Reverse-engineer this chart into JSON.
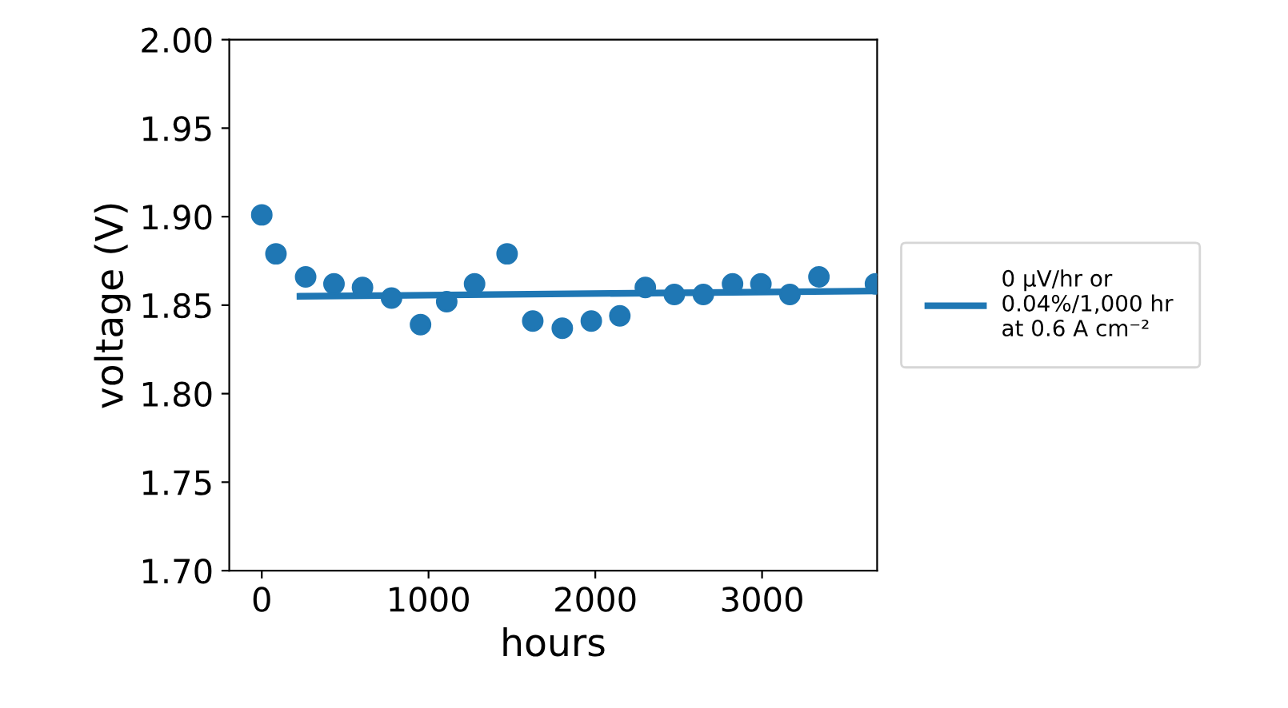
{
  "chart_data": {
    "type": "scatter",
    "xlabel": "hours",
    "ylabel": "voltage (V)",
    "xlim": [
      -195,
      3690
    ],
    "xticks": [
      0,
      1000,
      2000,
      3000
    ],
    "ylim": [
      1.7,
      2.0
    ],
    "yticks": [
      {
        "value": 1.7,
        "label": "1.70"
      },
      {
        "value": 1.75,
        "label": "1.75"
      },
      {
        "value": 1.8,
        "label": "1.80"
      },
      {
        "value": 1.85,
        "label": "1.85"
      },
      {
        "value": 1.9,
        "label": "1.90"
      },
      {
        "value": 1.95,
        "label": "1.95"
      },
      {
        "value": 2.0,
        "label": "2.00"
      }
    ],
    "grid": false,
    "legend": "right",
    "series": [
      {
        "color": "#1f77b4",
        "marker": "circle",
        "x": [
          0,
          85,
          263,
          433,
          604,
          778,
          952,
          1109,
          1276,
          1471,
          1625,
          1802,
          1976,
          2147,
          2300,
          2474,
          2648,
          2823,
          2993,
          3167,
          3341,
          3680
        ],
        "values": [
          1.901,
          1.879,
          1.866,
          1.862,
          1.86,
          1.854,
          1.839,
          1.852,
          1.862,
          1.879,
          1.841,
          1.837,
          1.841,
          1.844,
          1.86,
          1.856,
          1.856,
          1.862,
          1.862,
          1.856,
          1.866,
          1.862
        ]
      },
      {
        "type": "line",
        "name": "0 µV/hr or\n0.04%/1,000 hr\nat 0.6 A cm⁻²",
        "color": "#1f77b4",
        "line_style": "solid",
        "x": [
          229,
          3690
        ],
        "values": [
          1.855,
          1.858
        ]
      }
    ]
  }
}
